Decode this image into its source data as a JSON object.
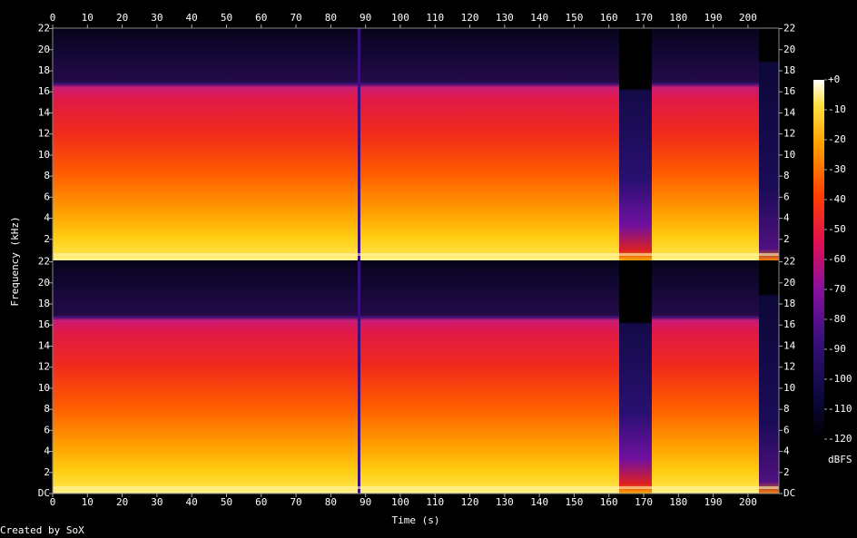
{
  "chart_data": {
    "type": "spectrogram",
    "xlabel": "Time (s)",
    "ylabel": "Frequency (kHz)",
    "xlim": [
      0,
      208.9
    ],
    "xticks": [
      0,
      10,
      20,
      30,
      40,
      50,
      60,
      70,
      80,
      90,
      100,
      110,
      120,
      130,
      140,
      150,
      160,
      170,
      180,
      190,
      200
    ],
    "channels": [
      {
        "ylim": [
          0,
          22.05
        ],
        "yticks": [
          2,
          4,
          6,
          8,
          10,
          12,
          14,
          16,
          18,
          20,
          22
        ]
      },
      {
        "ylim": [
          0,
          22.05
        ],
        "yticks": [
          {
            "value": 0,
            "label": "DC"
          },
          2,
          4,
          6,
          8,
          10,
          12,
          14,
          16,
          18,
          20,
          22
        ]
      }
    ],
    "colorbar": {
      "label": "dBFS",
      "lim": [
        -120,
        0
      ],
      "ticks": [
        {
          "value": 0,
          "label": "+0"
        },
        -10,
        -20,
        -30,
        -40,
        -50,
        -60,
        -70,
        -80,
        -90,
        -100,
        -110,
        -120
      ]
    },
    "footer": "Created by SoX"
  }
}
